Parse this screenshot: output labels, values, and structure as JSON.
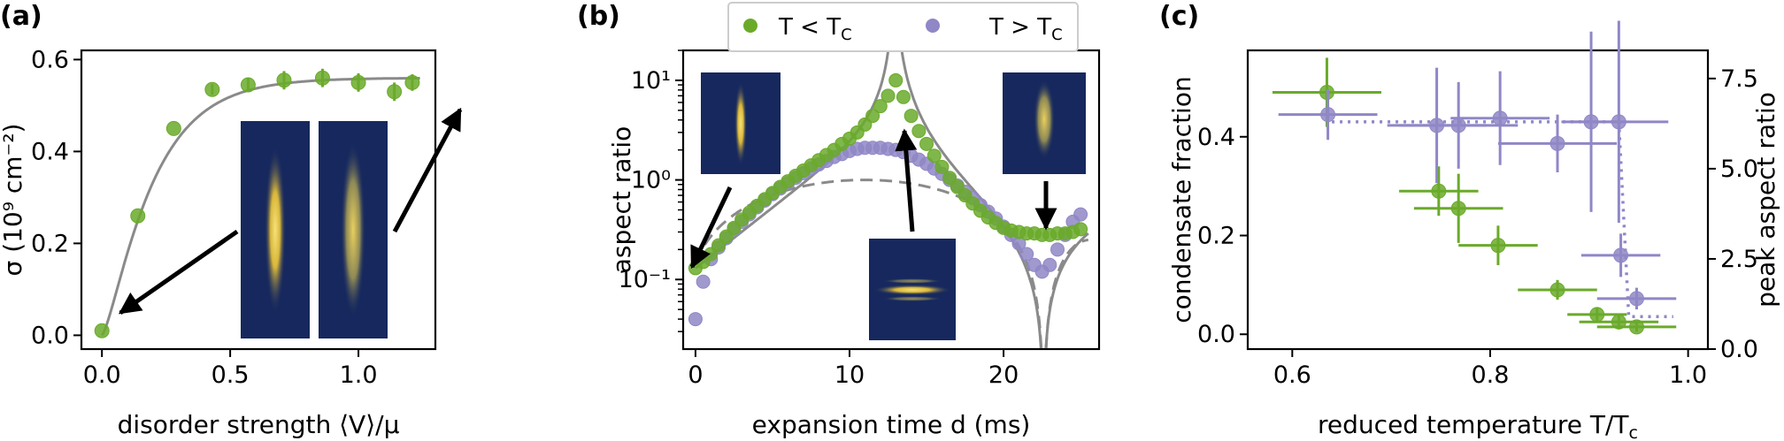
{
  "colors": {
    "green": "#6aaa2a",
    "purple": "#8f87c6",
    "gray": "#8a8a8a",
    "inset_bg": "#16285e",
    "inset_glow": "#f4d84a"
  },
  "chart_data": [
    {
      "type": "scatter",
      "panel_label": "(a)",
      "xlabel": "disorder strength ⟨V⟩/μ",
      "ylabel": "σ (10⁹ cm⁻²)",
      "xlim": [
        -0.08,
        1.3
      ],
      "ylim": [
        -0.03,
        0.62
      ],
      "xticks": [
        0.0,
        0.5,
        1.0
      ],
      "xtick_labels": [
        "0.0",
        "0.5",
        "1.0"
      ],
      "yticks": [
        0.0,
        0.2,
        0.4,
        0.6
      ],
      "ytick_labels": [
        "0.0",
        "0.2",
        "0.4",
        "0.6"
      ],
      "series": [
        {
          "color": "green",
          "x": [
            0.0,
            0.14,
            0.28,
            0.43,
            0.57,
            0.71,
            0.86,
            1.0,
            1.14,
            1.21
          ],
          "y": [
            0.01,
            0.26,
            0.45,
            0.535,
            0.545,
            0.555,
            0.56,
            0.55,
            0.53,
            0.55
          ],
          "yerr": [
            0.0,
            0.0,
            0.0,
            0.012,
            0.015,
            0.02,
            0.02,
            0.02,
            0.02,
            0.018
          ]
        }
      ],
      "fit_curve": {
        "color": "gray",
        "form": "0.56*(1-exp(-x/0.17))^1.4"
      },
      "insets": 2,
      "arrows": 2
    },
    {
      "type": "scatter",
      "panel_label": "(b)",
      "xlabel": "expansion time d (ms)",
      "ylabel": "aspect ratio",
      "xlim": [
        -0.8,
        26.2
      ],
      "yscale": "log",
      "ylim": [
        0.02,
        20
      ],
      "xticks": [
        0,
        10,
        20
      ],
      "xtick_labels": [
        "0",
        "10",
        "20"
      ],
      "yticks": [
        0.1,
        1,
        10
      ],
      "ytick_labels": [
        "10⁻¹",
        "10⁰",
        "10¹"
      ],
      "legend": {
        "placement": "top-center",
        "entries": [
          {
            "label": "T < T",
            "sub": "C",
            "color": "green"
          },
          {
            "label": "T > T",
            "sub": "C",
            "color": "purple"
          }
        ]
      },
      "series": [
        {
          "name": "T < T_C",
          "color": "purple",
          "x": [
            0,
            0.5,
            1,
            1.5,
            2,
            2.5,
            3,
            3.5,
            4,
            4.5,
            5,
            5.5,
            6,
            6.5,
            7,
            7.5,
            8,
            8.5,
            9,
            9.5,
            10,
            10.5,
            11,
            11.5,
            12,
            12.5,
            13,
            13.5,
            14,
            14.5,
            15,
            15.5,
            16,
            16.5,
            17,
            17.5,
            18,
            18.5,
            19,
            19.5,
            20,
            20.5,
            21,
            21.5,
            22,
            22.5,
            23,
            23.5,
            24,
            24.5,
            25
          ],
          "y": [
            0.04,
            0.095,
            0.16,
            0.21,
            0.26,
            0.32,
            0.38,
            0.45,
            0.53,
            0.62,
            0.72,
            0.82,
            0.93,
            1.05,
            1.17,
            1.3,
            1.43,
            1.55,
            1.7,
            1.82,
            1.95,
            2.05,
            2.1,
            2.1,
            2.1,
            2.05,
            2.0,
            1.9,
            1.75,
            1.6,
            1.45,
            1.3,
            1.15,
            1.0,
            0.88,
            0.76,
            0.66,
            0.56,
            0.48,
            0.41,
            0.34,
            0.28,
            0.23,
            0.18,
            0.14,
            0.12,
            0.14,
            0.2,
            0.28,
            0.38,
            0.45
          ]
        },
        {
          "name": "T > T_C",
          "color": "green",
          "x": [
            0,
            0.5,
            1,
            1.5,
            2,
            2.5,
            3,
            3.5,
            4,
            4.5,
            5,
            5.5,
            6,
            6.5,
            7,
            7.5,
            8,
            8.5,
            9,
            9.5,
            10,
            10.5,
            11,
            11.5,
            12,
            12.5,
            13,
            13.5,
            14,
            14.5,
            15,
            15.5,
            16,
            16.5,
            17,
            17.5,
            18,
            18.5,
            19,
            19.5,
            20,
            20.5,
            21,
            21.5,
            22,
            22.5,
            23,
            23.5,
            24,
            24.5,
            25
          ],
          "y": [
            0.13,
            0.15,
            0.18,
            0.22,
            0.27,
            0.33,
            0.4,
            0.47,
            0.55,
            0.64,
            0.74,
            0.85,
            0.97,
            1.1,
            1.24,
            1.4,
            1.58,
            1.78,
            2.0,
            2.3,
            2.6,
            3.0,
            3.6,
            4.4,
            5.5,
            7.0,
            10.0,
            6.8,
            4.4,
            3.1,
            2.3,
            1.75,
            1.35,
            1.05,
            0.85,
            0.7,
            0.58,
            0.49,
            0.42,
            0.37,
            0.33,
            0.31,
            0.3,
            0.29,
            0.29,
            0.28,
            0.28,
            0.29,
            0.29,
            0.3,
            0.32
          ]
        }
      ],
      "theory_curves": [
        {
          "color": "gray",
          "style": "solid",
          "form": "cosh-like divergence at 12.9 ms, zero at 22.6 ms"
        },
        {
          "color": "gray",
          "style": "dashed",
          "form": "peak ≈1 at 11 ms, zero at 22.6 ms"
        }
      ],
      "insets": 3,
      "arrows": 3
    },
    {
      "type": "scatter",
      "panel_label": "(c)",
      "xlabel": "reduced temperature T/T",
      "xlabel_sub": "c",
      "ylabel_left": "condensate fraction",
      "ylabel_right": "peak aspect ratio",
      "xlim": [
        0.555,
        1.02
      ],
      "ylim_left": [
        -0.03,
        0.575
      ],
      "ylim_right": [
        0.0,
        8.28
      ],
      "xticks": [
        0.6,
        0.8,
        1.0
      ],
      "xtick_labels": [
        "0.6",
        "0.8",
        "1.0"
      ],
      "yticks_left": [
        0.0,
        0.2,
        0.4
      ],
      "ytick_labels_left": [
        "0.0",
        "0.2",
        "0.4"
      ],
      "yticks_right": [
        0.0,
        2.5,
        5.0,
        7.5
      ],
      "ytick_labels_right": [
        "0.0",
        "2.5",
        "5.0",
        "7.5"
      ],
      "series": [
        {
          "name": "condensate fraction",
          "axis": "left",
          "color": "green",
          "x": [
            0.635,
            0.748,
            0.768,
            0.808,
            0.868,
            0.908,
            0.93,
            0.948
          ],
          "y": [
            0.49,
            0.29,
            0.255,
            0.18,
            0.09,
            0.04,
            0.025,
            0.015
          ],
          "xerr": [
            0.055,
            0.04,
            0.045,
            0.04,
            0.04,
            0.03,
            0.04,
            0.04
          ],
          "yerr": [
            0.07,
            0.05,
            0.07,
            0.04,
            0.02,
            0.015,
            0.015,
            0.01
          ]
        },
        {
          "name": "peak aspect ratio",
          "axis": "right",
          "color": "purple",
          "x": [
            0.636,
            0.746,
            0.768,
            0.81,
            0.868,
            0.902,
            0.93,
            0.932,
            0.948
          ],
          "y": [
            6.5,
            6.2,
            6.2,
            6.4,
            5.7,
            6.3,
            6.3,
            2.6,
            1.4
          ],
          "xerr": [
            0.05,
            0.05,
            0.06,
            0.05,
            0.06,
            0.03,
            0.05,
            0.04,
            0.04
          ],
          "yerr": [
            0.7,
            1.6,
            1.2,
            1.3,
            0.8,
            2.5,
            2.8,
            0.6,
            0.3
          ]
        }
      ],
      "dotted_step": {
        "color": "purple",
        "high": 6.3,
        "low": 0.9,
        "step_x": 0.935
      }
    }
  ]
}
